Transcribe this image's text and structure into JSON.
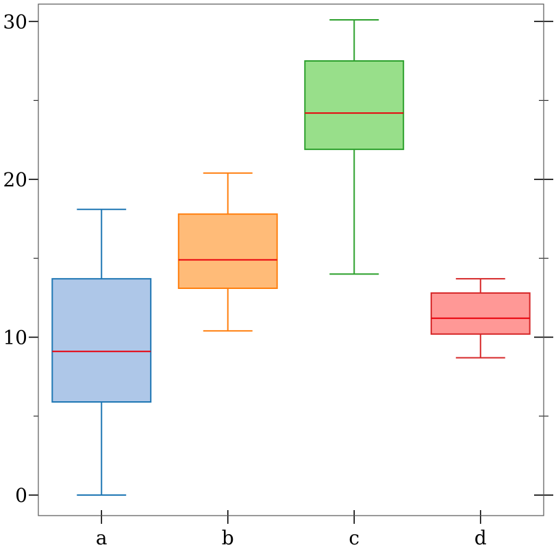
{
  "chart_data": {
    "type": "boxplot",
    "title": "",
    "xlabel": "",
    "ylabel": "",
    "categories": [
      "a",
      "b",
      "c",
      "d"
    ],
    "ylim": [
      -1.3,
      31.1
    ],
    "yticks_major": [
      0,
      10,
      20,
      30
    ],
    "yticks_major_labels": [
      "0",
      "10",
      "20",
      "30"
    ],
    "yticks_minor": [
      5,
      15,
      25
    ],
    "grid": false,
    "median_color": "#e8000b",
    "boxes": [
      {
        "label": "a",
        "whisker_low": 0.0,
        "q1": 5.9,
        "median": 9.1,
        "q3": 13.7,
        "whisker_high": 18.1,
        "edge_color": "#1f77b4",
        "fill_color": "#aec7e8"
      },
      {
        "label": "b",
        "whisker_low": 10.4,
        "q1": 13.1,
        "median": 14.9,
        "q3": 17.8,
        "whisker_high": 20.4,
        "edge_color": "#ff7f0e",
        "fill_color": "#ffbb78"
      },
      {
        "label": "c",
        "whisker_low": 14.0,
        "q1": 21.9,
        "median": 24.2,
        "q3": 27.5,
        "whisker_high": 30.1,
        "edge_color": "#2ca02c",
        "fill_color": "#98df8a"
      },
      {
        "label": "d",
        "whisker_low": 8.7,
        "q1": 10.2,
        "median": 11.2,
        "q3": 12.8,
        "whisker_high": 13.7,
        "edge_color": "#d62728",
        "fill_color": "#ff9896"
      }
    ]
  }
}
